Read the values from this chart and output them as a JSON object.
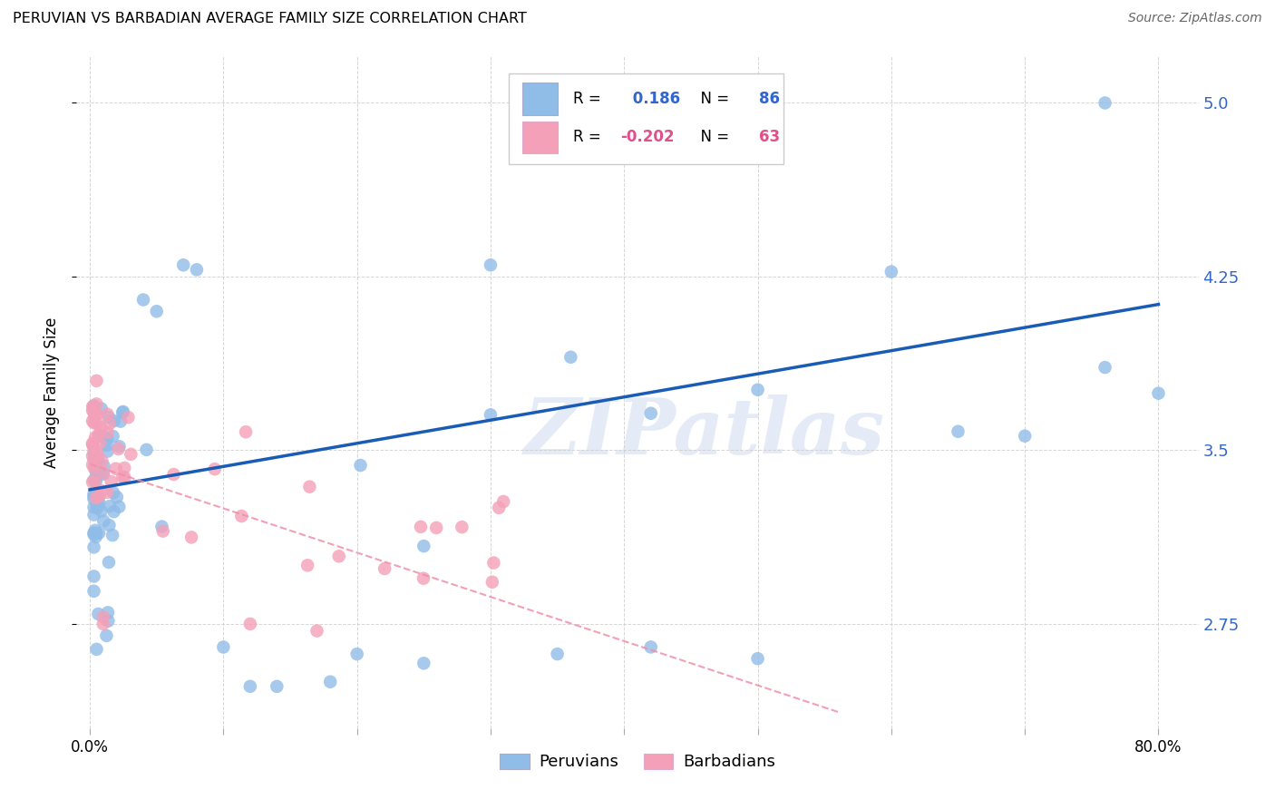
{
  "title": "PERUVIAN VS BARBADIAN AVERAGE FAMILY SIZE CORRELATION CHART",
  "source": "Source: ZipAtlas.com",
  "ylabel": "Average Family Size",
  "peruvian_color": "#90bce8",
  "barbadian_color": "#f4a0b8",
  "peruvian_line_color": "#1a5cb5",
  "barbadian_line_color": "#f090a8",
  "R_peruvian": 0.186,
  "N_peruvian": 86,
  "R_barbadian": -0.202,
  "N_barbadian": 63,
  "peru_line_x0": 0.0,
  "peru_line_y0": 3.33,
  "peru_line_x1": 0.8,
  "peru_line_y1": 4.13,
  "barb_line_x0": 0.0,
  "barb_line_y0": 3.44,
  "barb_line_x1": 0.56,
  "barb_line_y1": 2.37,
  "ytick_vals": [
    2.75,
    3.5,
    4.25,
    5.0
  ],
  "xtick_vals": [
    0.0,
    0.1,
    0.2,
    0.3,
    0.4,
    0.5,
    0.6,
    0.7,
    0.8
  ],
  "xlim": [
    -0.01,
    0.83
  ],
  "ylim": [
    2.3,
    5.2
  ]
}
